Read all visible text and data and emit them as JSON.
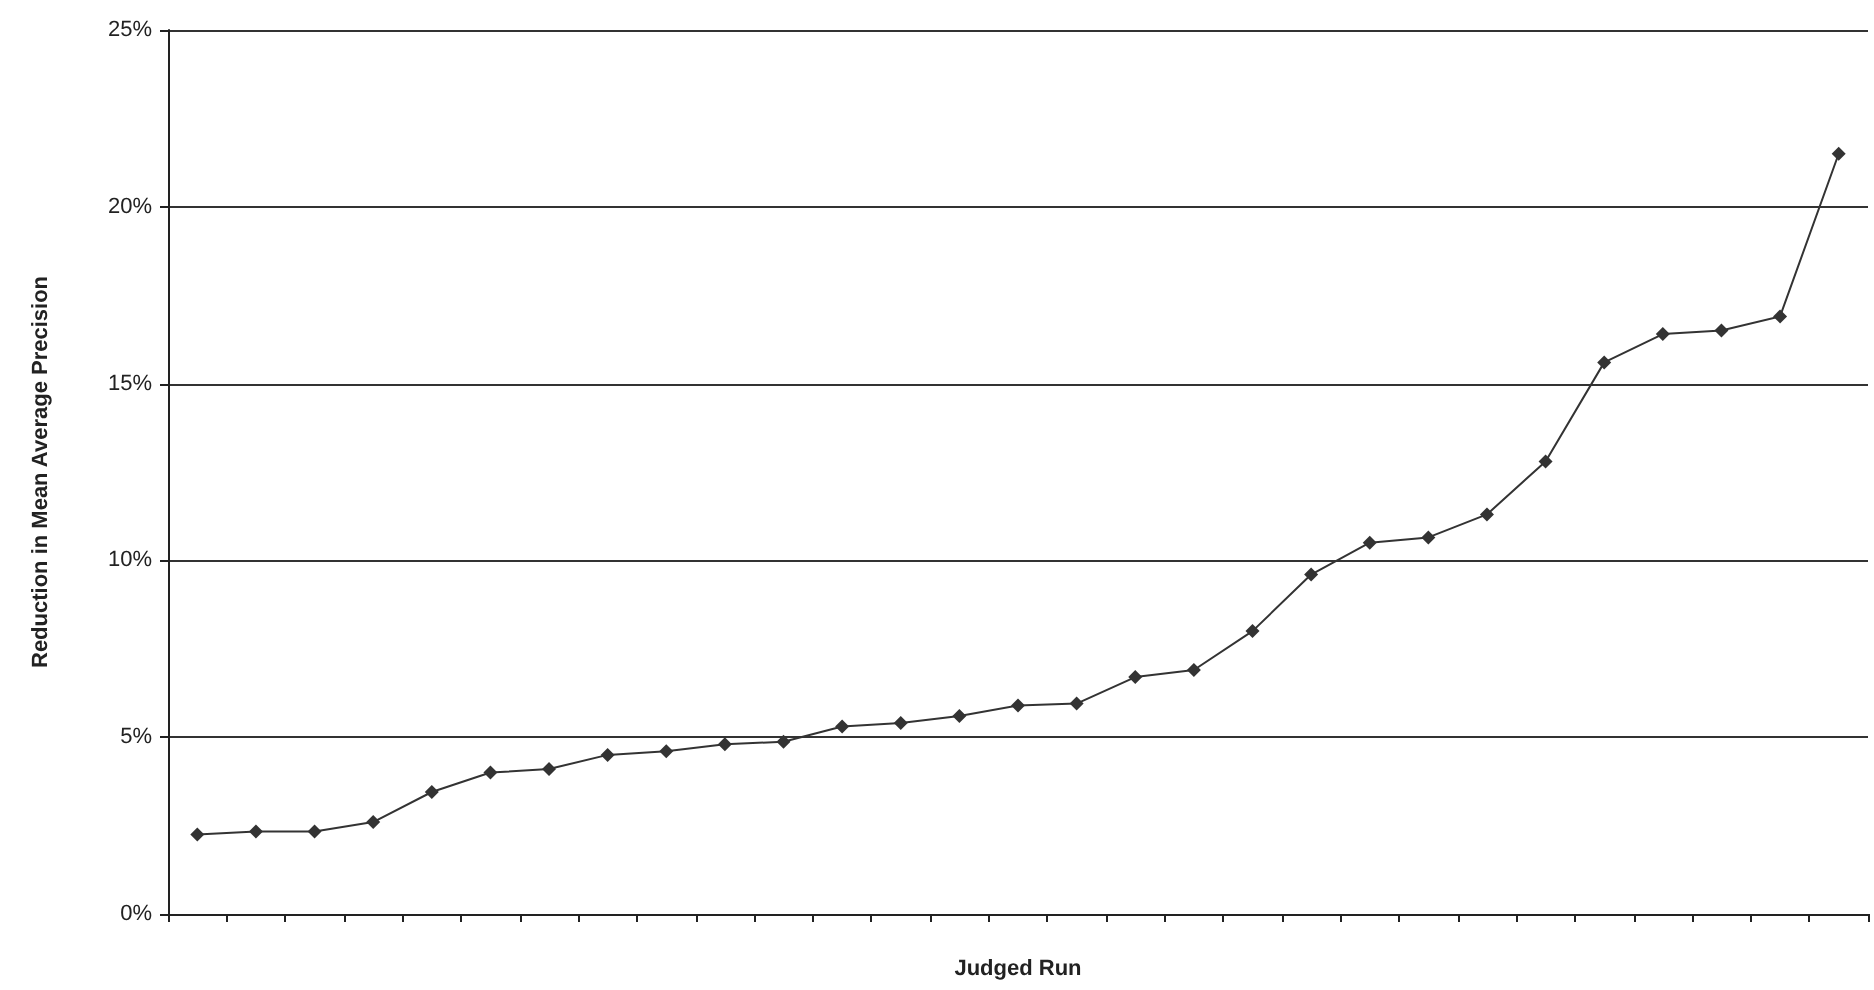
{
  "chart_data": {
    "type": "line",
    "xlabel": "Judged Run",
    "ylabel": "Reduction in Mean Average Precision",
    "categories": [
      null,
      null,
      null,
      null,
      null,
      null,
      null,
      null,
      null,
      null,
      null,
      null,
      null,
      null,
      null,
      null,
      null,
      null,
      null,
      null,
      null,
      null,
      null,
      null,
      null,
      null,
      null,
      null,
      null
    ],
    "series": [
      {
        "color": "#333333",
        "values": [
          2.25,
          2.33,
          2.33,
          2.6,
          3.45,
          4.0,
          4.1,
          4.5,
          4.6,
          4.8,
          4.87,
          5.3,
          5.4,
          5.6,
          5.9,
          5.95,
          6.7,
          6.9,
          8.0,
          9.6,
          10.5,
          10.65,
          11.3,
          12.8,
          15.6,
          16.4,
          16.5,
          16.9,
          21.5
        ]
      }
    ],
    "ylim": [
      0,
      25
    ],
    "yticks": [
      {
        "value": 0,
        "label": "0%"
      },
      {
        "value": 5,
        "label": "5%"
      },
      {
        "value": 10,
        "label": "10%"
      },
      {
        "value": 15,
        "label": "15%"
      },
      {
        "value": 20,
        "label": "20%"
      },
      {
        "value": 25,
        "label": "25%"
      }
    ],
    "grid": "y",
    "marker": "diamond",
    "line_style": "solid"
  }
}
